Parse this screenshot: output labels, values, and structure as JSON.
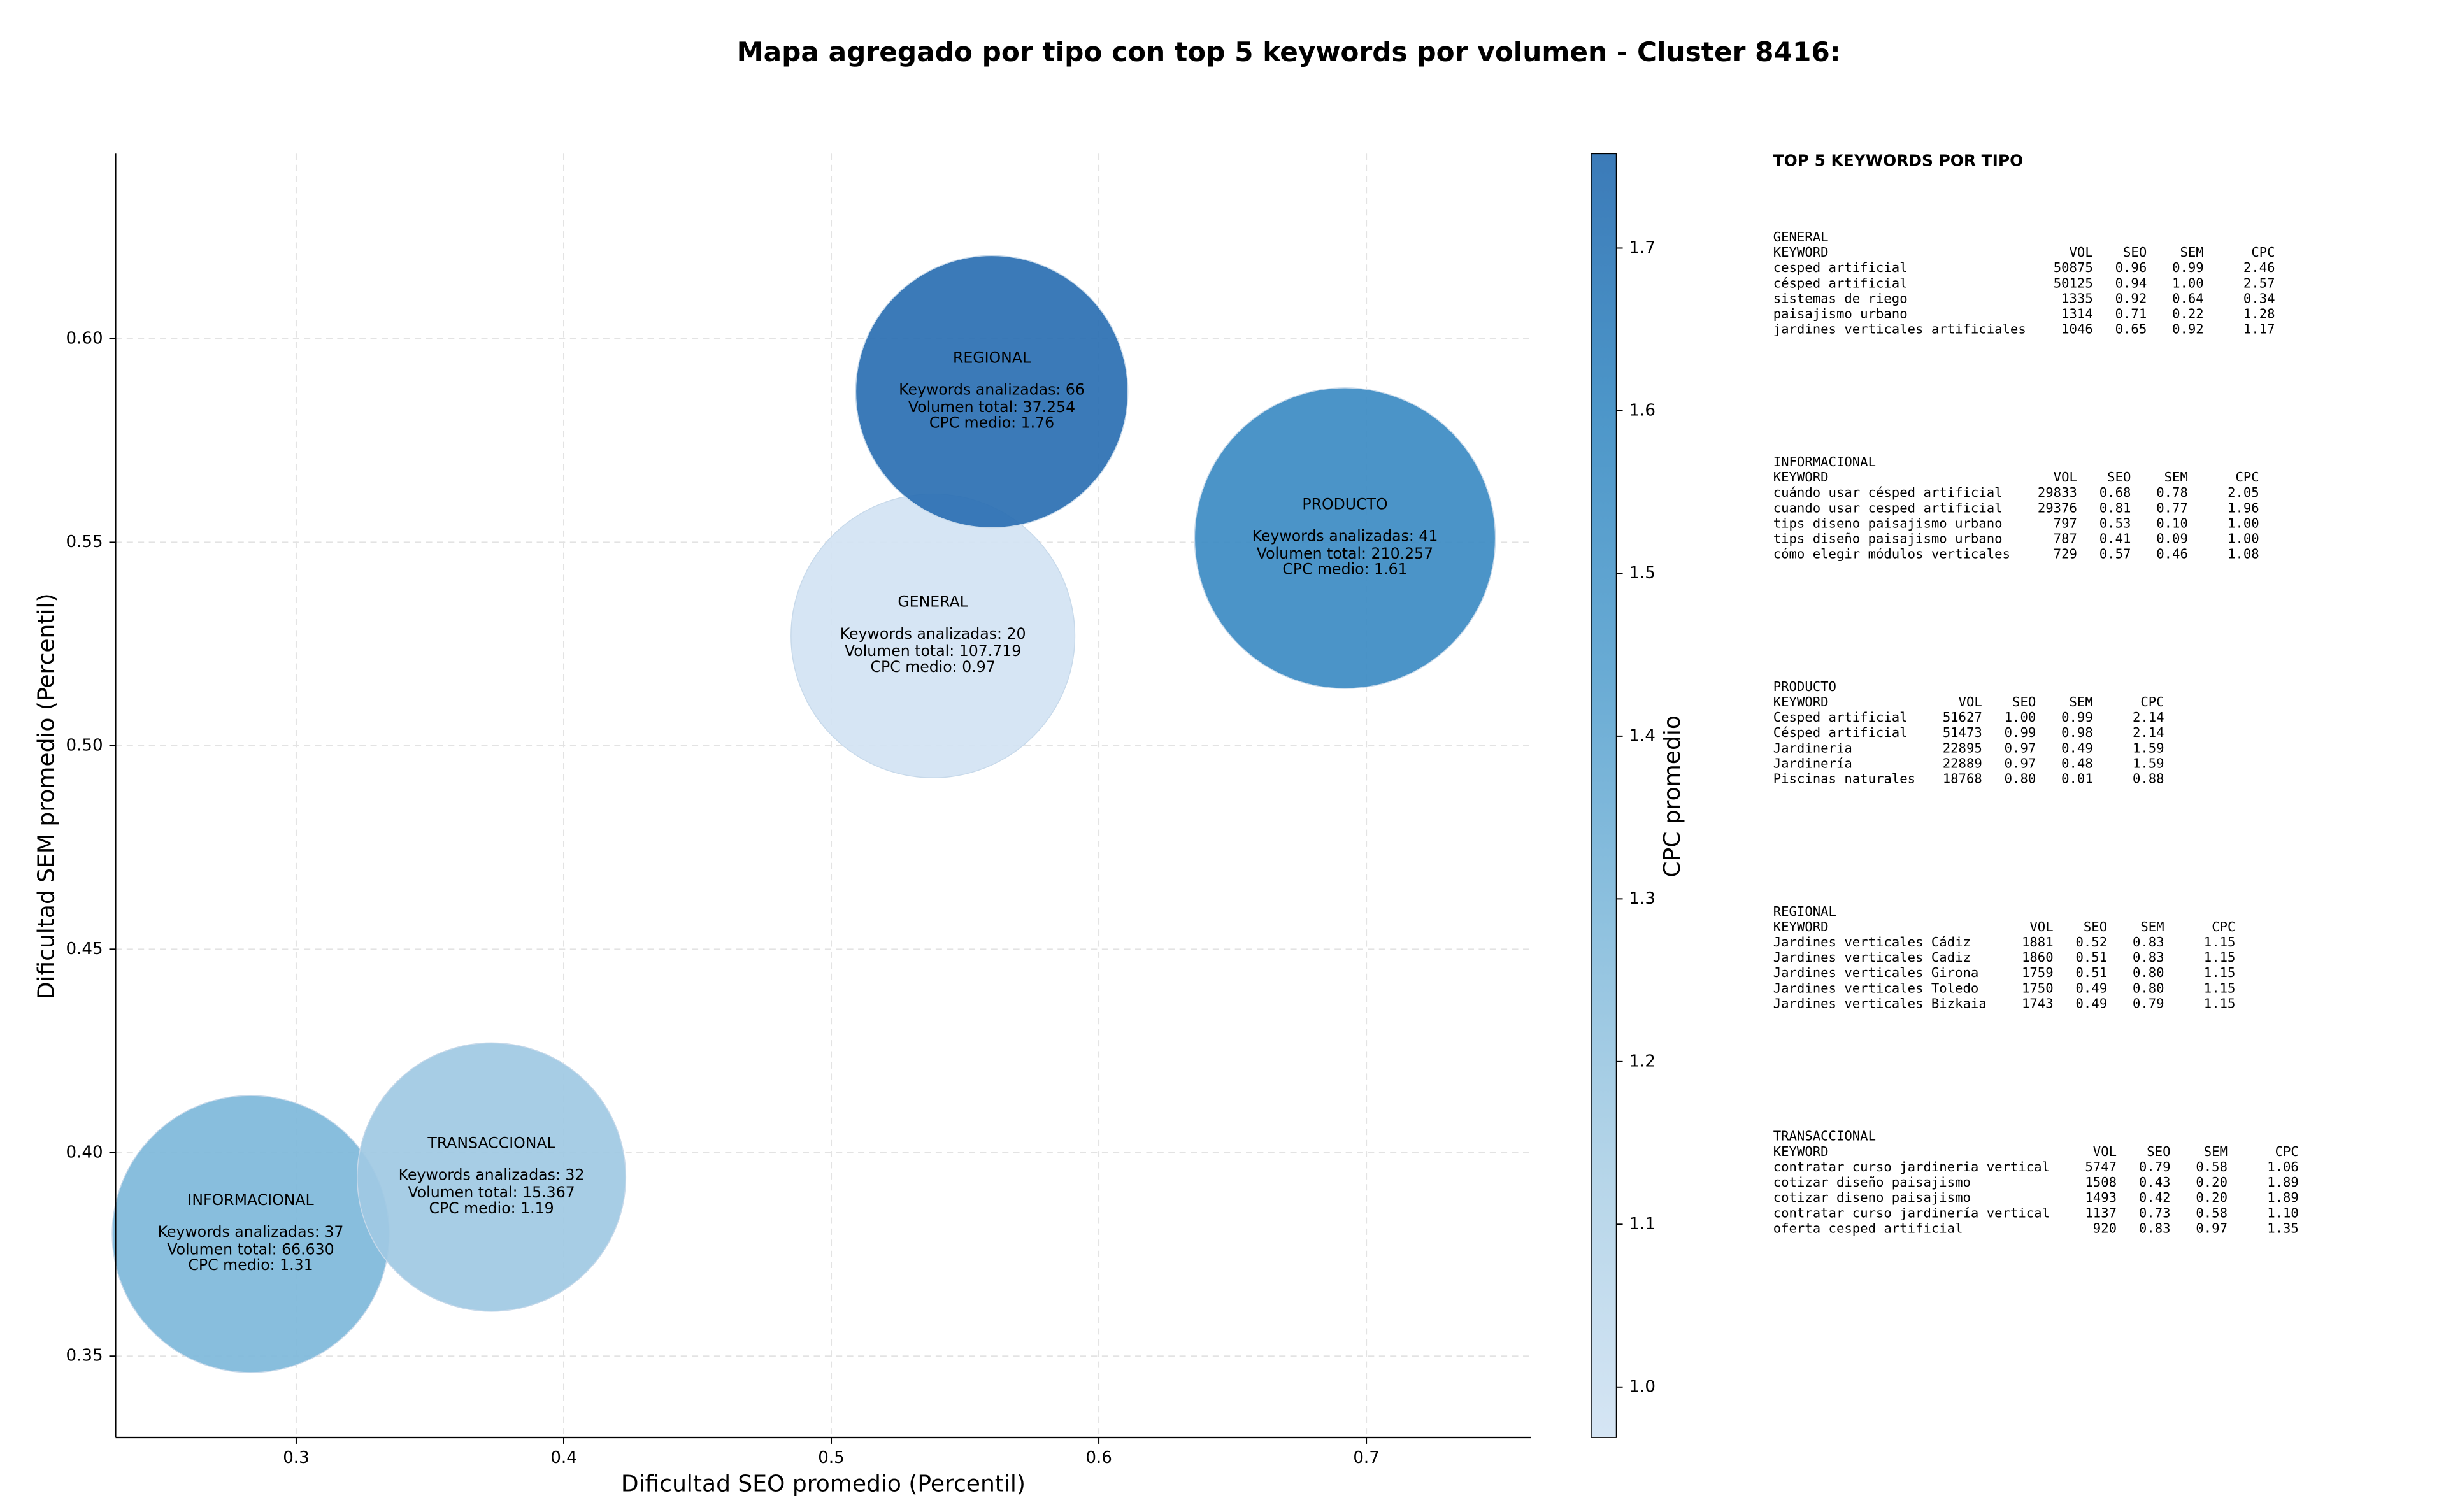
{
  "chart_data": {
    "type": "bubble",
    "title": "Mapa agregado por tipo con top 5 keywords por volumen - Cluster 8416:",
    "x_label": "Dificultad SEO promedio (Percentil)",
    "y_label": "Dificultad SEM promedio (Percentil)",
    "colorbar_label": "CPC promedio",
    "xlim": [
      0.2325,
      0.7615
    ],
    "ylim": [
      0.33,
      0.6455
    ],
    "xticks": [
      0.3,
      0.4,
      0.5,
      0.6,
      0.7
    ],
    "yticks": [
      {
        "value": 0.35,
        "label": "0.35"
      },
      {
        "value": 0.4,
        "label": "0.40"
      },
      {
        "value": 0.45,
        "label": "0.45"
      },
      {
        "value": 0.5,
        "label": "0.50"
      },
      {
        "value": 0.55,
        "label": "0.55"
      },
      {
        "value": 0.6,
        "label": "0.60"
      }
    ],
    "clim": [
      0.969,
      1.758
    ],
    "cticks": [
      {
        "value": 1.0,
        "label": "1.0"
      },
      1.1,
      1.2,
      1.3,
      1.4,
      1.5,
      1.6,
      1.7
    ],
    "grid": true,
    "colormap": [
      "#d2e3f3",
      "#b0d2e7",
      "#85bcdc",
      "#5ba3d0",
      "#3d8dc4",
      "#2a6fb2"
    ],
    "alpha": 0.92,
    "labels": {
      "keywords": "Keywords analizadas:",
      "volume": "Volumen total:",
      "cpc": "CPC medio:"
    },
    "points": [
      {
        "name": "GENERAL",
        "x": 0.538,
        "y": 0.527,
        "keywords": 20,
        "volume": 107719,
        "volume_label": "107.719",
        "cpc": 0.97
      },
      {
        "name": "INFORMACIONAL",
        "x": 0.283,
        "y": 0.38,
        "keywords": 37,
        "volume": 66630,
        "volume_label": "66.630",
        "cpc": 1.31
      },
      {
        "name": "TRANSACCIONAL",
        "x": 0.373,
        "y": 0.394,
        "keywords": 32,
        "volume": 15367,
        "volume_label": "15.367",
        "cpc": 1.19
      },
      {
        "name": "PRODUCTO",
        "x": 0.692,
        "y": 0.551,
        "keywords": 41,
        "volume": 210257,
        "volume_label": "210.257",
        "cpc": 1.61
      },
      {
        "name": "REGIONAL",
        "x": 0.56,
        "y": 0.587,
        "keywords": 66,
        "volume": 37254,
        "volume_label": "37.254",
        "cpc": 1.76
      }
    ]
  },
  "side_panel": {
    "title": "TOP 5 KEYWORDS POR TIPO",
    "tables": [
      {
        "title": "GENERAL",
        "columns": [
          "KEYWORD",
          "VOL",
          "SEO",
          "SEM",
          "CPC"
        ],
        "rows": [
          [
            "cesped artificial",
            "50875",
            "0.96",
            "0.99",
            "2.46"
          ],
          [
            "césped artificial",
            "50125",
            "0.94",
            "1.00",
            "2.57"
          ],
          [
            "sistemas de riego",
            "1335",
            "0.92",
            "0.64",
            "0.34"
          ],
          [
            "paisajismo urbano",
            "1314",
            "0.71",
            "0.22",
            "1.28"
          ],
          [
            "jardines verticales artificiales",
            "1046",
            "0.65",
            "0.92",
            "1.17"
          ]
        ]
      },
      {
        "title": "INFORMACIONAL",
        "columns": [
          "KEYWORD",
          "VOL",
          "SEO",
          "SEM",
          "CPC"
        ],
        "rows": [
          [
            "cuándo usar césped artificial",
            "29833",
            "0.68",
            "0.78",
            "2.05"
          ],
          [
            "cuando usar cesped artificial",
            "29376",
            "0.81",
            "0.77",
            "1.96"
          ],
          [
            "tips diseno paisajismo urbano",
            "797",
            "0.53",
            "0.10",
            "1.00"
          ],
          [
            "tips diseño paisajismo urbano",
            "787",
            "0.41",
            "0.09",
            "1.00"
          ],
          [
            "cómo elegir módulos verticales",
            "729",
            "0.57",
            "0.46",
            "1.08"
          ]
        ]
      },
      {
        "title": "PRODUCTO",
        "columns": [
          "KEYWORD",
          "VOL",
          "SEO",
          "SEM",
          "CPC"
        ],
        "rows": [
          [
            "Cesped artificial",
            "51627",
            "1.00",
            "0.99",
            "2.14"
          ],
          [
            "Césped artificial",
            "51473",
            "0.99",
            "0.98",
            "2.14"
          ],
          [
            "Jardineria",
            "22895",
            "0.97",
            "0.49",
            "1.59"
          ],
          [
            "Jardinería",
            "22889",
            "0.97",
            "0.48",
            "1.59"
          ],
          [
            "Piscinas naturales",
            "18768",
            "0.80",
            "0.01",
            "0.88"
          ]
        ]
      },
      {
        "title": "REGIONAL",
        "columns": [
          "KEYWORD",
          "VOL",
          "SEO",
          "SEM",
          "CPC"
        ],
        "rows": [
          [
            "Jardines verticales Cádiz",
            "1881",
            "0.52",
            "0.83",
            "1.15"
          ],
          [
            "Jardines verticales Cadiz",
            "1860",
            "0.51",
            "0.83",
            "1.15"
          ],
          [
            "Jardines verticales Girona",
            "1759",
            "0.51",
            "0.80",
            "1.15"
          ],
          [
            "Jardines verticales Toledo",
            "1750",
            "0.49",
            "0.80",
            "1.15"
          ],
          [
            "Jardines verticales Bizkaia",
            "1743",
            "0.49",
            "0.79",
            "1.15"
          ]
        ]
      },
      {
        "title": "TRANSACCIONAL",
        "columns": [
          "KEYWORD",
          "VOL",
          "SEO",
          "SEM",
          "CPC"
        ],
        "rows": [
          [
            "contratar curso jardineria vertical",
            "5747",
            "0.79",
            "0.58",
            "1.06"
          ],
          [
            "cotizar diseño paisajismo",
            "1508",
            "0.43",
            "0.20",
            "1.89"
          ],
          [
            "cotizar diseno paisajismo",
            "1493",
            "0.42",
            "0.20",
            "1.89"
          ],
          [
            "contratar curso jardinería vertical",
            "1137",
            "0.73",
            "0.58",
            "1.10"
          ],
          [
            "oferta cesped artificial",
            "920",
            "0.83",
            "0.97",
            "1.35"
          ]
        ]
      }
    ]
  }
}
